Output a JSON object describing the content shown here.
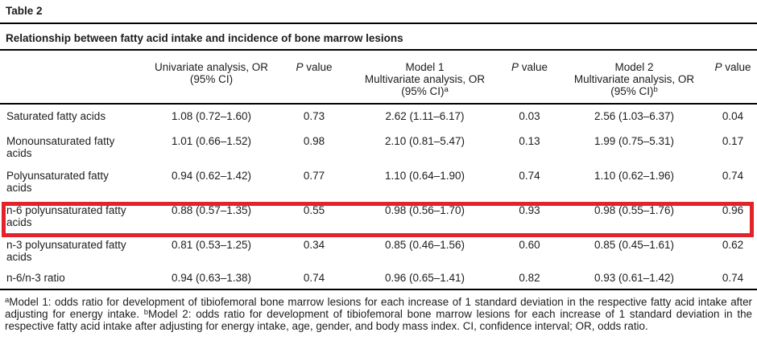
{
  "page": {
    "table_number": "Table 2",
    "title": "Relationship between fatty acid intake and incidence of bone marrow lesions"
  },
  "header": {
    "univariate_line1": "Univariate analysis, OR",
    "univariate_line2": "(95% CI)",
    "p_italic": "P",
    "p_rest": " value",
    "model1_line1": "Model 1",
    "model1_line2": "Multivariate analysis, OR",
    "model1_line3": "(95% CI)",
    "model1_sup": "a",
    "model2_line1": "Model 2",
    "model2_line2": "Multivariate analysis, OR",
    "model2_line3": "(95% CI)",
    "model2_sup": "b"
  },
  "rows": [
    {
      "label": "Saturated fatty acids",
      "uni": "1.08 (0.72–1.60)",
      "p1": "0.73",
      "m1": "2.62 (1.11–6.17)",
      "p2": "0.03",
      "m2": "2.56 (1.03–6.37)",
      "p3": "0.04",
      "highlighted": false
    },
    {
      "label": "Monounsaturated fatty acids",
      "uni": "1.01 (0.66–1.52)",
      "p1": "0.98",
      "m1": "2.10 (0.81–5.47)",
      "p2": "0.13",
      "m2": "1.99 (0.75–5.31)",
      "p3": "0.17",
      "highlighted": false
    },
    {
      "label": "Polyunsaturated fatty acids",
      "uni": "0.94 (0.62–1.42)",
      "p1": "0.77",
      "m1": "1.10 (0.64–1.90)",
      "p2": "0.74",
      "m2": "1.10 (0.62–1.96)",
      "p3": "0.74",
      "highlighted": false
    },
    {
      "label": "n-6 polyunsaturated fatty acids",
      "uni": "0.88 (0.57–1.35)",
      "p1": "0.55",
      "m1": "0.98 (0.56–1.70)",
      "p2": "0.93",
      "m2": "0.98 (0.55–1.76)",
      "p3": "0.96",
      "highlighted": true
    },
    {
      "label": "n-3 polyunsaturated fatty acids",
      "uni": "0.81 (0.53–1.25)",
      "p1": "0.34",
      "m1": "0.85 (0.46–1.56)",
      "p2": "0.60",
      "m2": "0.85 (0.45–1.61)",
      "p3": "0.62",
      "highlighted": false
    },
    {
      "label": "n-6/n-3 ratio",
      "uni": "0.94 (0.63–1.38)",
      "p1": "0.74",
      "m1": "0.96 (0.65–1.41)",
      "p2": "0.82",
      "m2": "0.93 (0.61–1.42)",
      "p3": "0.74",
      "highlighted": false
    }
  ],
  "footnote": {
    "sup_a": "a",
    "part1": "Model 1: odds ratio for development of tibiofemoral bone marrow lesions for each increase of 1 standard deviation in the respective fatty acid intake after adjusting for energy intake. ",
    "sup_b": "b",
    "part2": "Model 2: odds ratio for development of tibiofemoral bone marrow lesions for each increase of 1 standard deviation in the respective fatty acid intake after adjusting for energy intake, age, gender, and body mass index. CI, confidence interval; OR, odds ratio."
  },
  "highlight": {
    "color": "#e2232a",
    "highlighted_row_label": "n-6 polyunsaturated fatty acids"
  }
}
